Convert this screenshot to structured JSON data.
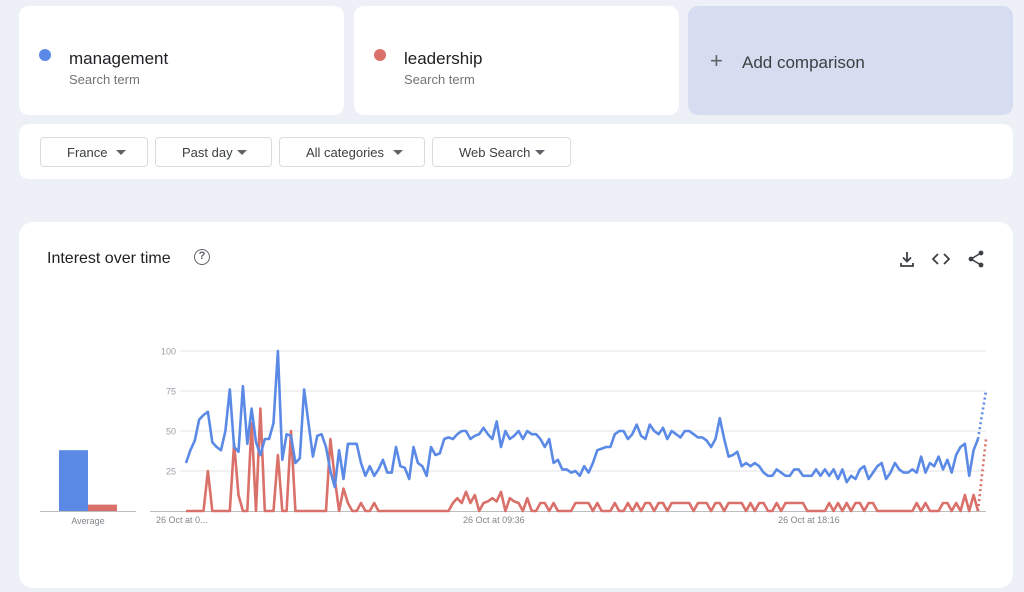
{
  "terms": [
    {
      "label": "management",
      "sub": "Search term",
      "color": "#5b8ae6"
    },
    {
      "label": "leadership",
      "sub": "Search term",
      "color": "#d9706a"
    }
  ],
  "add_comparison": {
    "icon": "plus-icon",
    "label": "Add comparison"
  },
  "filters": [
    {
      "label": "France"
    },
    {
      "label": "Past day"
    },
    {
      "label": "All categories"
    },
    {
      "label": "Web Search"
    }
  ],
  "card": {
    "title": "Interest over time",
    "icons": [
      "help-icon",
      "download-icon",
      "embed-code-icon",
      "share-icon"
    ]
  },
  "chart_data": {
    "type": "line",
    "average": {
      "label": "Average",
      "values": [
        {
          "name": "management",
          "value": 38
        },
        {
          "name": "leadership",
          "value": 4
        }
      ]
    },
    "x_ticks": [
      "26 Oct at 0...",
      "26 Oct at 09:36",
      "26 Oct at 18:16"
    ],
    "x_tick_index": [
      0,
      72,
      144
    ],
    "y_ticks": [
      "100",
      "75",
      "50",
      "25"
    ],
    "ylim": [
      0,
      100
    ],
    "grid": true,
    "series": [
      {
        "name": "management",
        "color": "#5b8ae6",
        "values": [
          30,
          38,
          44,
          57,
          60,
          62,
          43,
          40,
          38,
          50,
          76,
          40,
          37,
          78,
          42,
          64,
          43,
          35,
          45,
          45,
          55,
          100,
          32,
          48,
          47,
          30,
          33,
          76,
          55,
          34,
          47,
          48,
          40,
          25,
          15,
          38,
          20,
          42,
          42,
          42,
          30,
          22,
          28,
          22,
          26,
          32,
          24,
          24,
          40,
          28,
          27,
          20,
          40,
          30,
          28,
          22,
          40,
          35,
          36,
          45,
          46,
          45,
          48,
          50,
          50,
          45,
          47,
          48,
          52,
          48,
          45,
          56,
          40,
          50,
          45,
          47,
          50,
          45,
          50,
          48,
          48,
          45,
          40,
          45,
          30,
          32,
          26,
          26,
          24,
          25,
          22,
          28,
          24,
          30,
          38,
          39,
          40,
          40,
          48,
          50,
          50,
          45,
          48,
          54,
          47,
          45,
          54,
          50,
          48,
          52,
          45,
          50,
          48,
          46,
          50,
          50,
          48,
          46,
          46,
          44,
          40,
          45,
          58,
          45,
          34,
          35,
          37,
          28,
          30,
          28,
          30,
          28,
          24,
          22,
          22,
          26,
          24,
          22,
          22,
          26,
          26,
          22,
          22,
          22,
          26,
          22,
          26,
          22,
          26,
          20,
          26,
          18,
          22,
          20,
          26,
          28,
          20,
          24,
          28,
          30,
          20,
          24,
          30,
          26,
          24,
          24,
          26,
          24,
          34,
          24,
          30,
          28,
          34,
          26,
          32,
          24,
          35,
          40,
          42,
          22,
          38,
          45
        ],
        "projection": 75
      },
      {
        "name": "leadership",
        "color": "#d9706a",
        "values": [
          0,
          0,
          0,
          0,
          0,
          25,
          0,
          0,
          0,
          0,
          0,
          42,
          10,
          0,
          0,
          55,
          0,
          64,
          0,
          0,
          0,
          35,
          0,
          0,
          50,
          0,
          0,
          0,
          0,
          0,
          0,
          0,
          0,
          45,
          20,
          0,
          14,
          5,
          0,
          0,
          5,
          0,
          0,
          5,
          0,
          0,
          0,
          0,
          0,
          0,
          0,
          0,
          0,
          0,
          0,
          0,
          0,
          0,
          0,
          0,
          0,
          5,
          8,
          5,
          12,
          5,
          10,
          0,
          5,
          6,
          8,
          6,
          12,
          0,
          8,
          6,
          5,
          0,
          8,
          0,
          0,
          5,
          5,
          0,
          5,
          0,
          0,
          0,
          0,
          5,
          5,
          5,
          5,
          0,
          5,
          0,
          0,
          0,
          5,
          0,
          0,
          5,
          0,
          5,
          0,
          5,
          5,
          0,
          5,
          5,
          0,
          5,
          5,
          5,
          5,
          5,
          0,
          5,
          5,
          5,
          0,
          5,
          5,
          0,
          5,
          5,
          5,
          5,
          0,
          5,
          0,
          5,
          5,
          0,
          0,
          5,
          0,
          5,
          5,
          5,
          5,
          5,
          0,
          0,
          0,
          0,
          0,
          5,
          0,
          5,
          0,
          5,
          0,
          5,
          5,
          0,
          5,
          5,
          0,
          0,
          0,
          0,
          0,
          0,
          0,
          0,
          0,
          5,
          0,
          5,
          0,
          0,
          0,
          5,
          5,
          0,
          5,
          0,
          10,
          0,
          10,
          0
        ],
        "projection": 45
      }
    ]
  }
}
